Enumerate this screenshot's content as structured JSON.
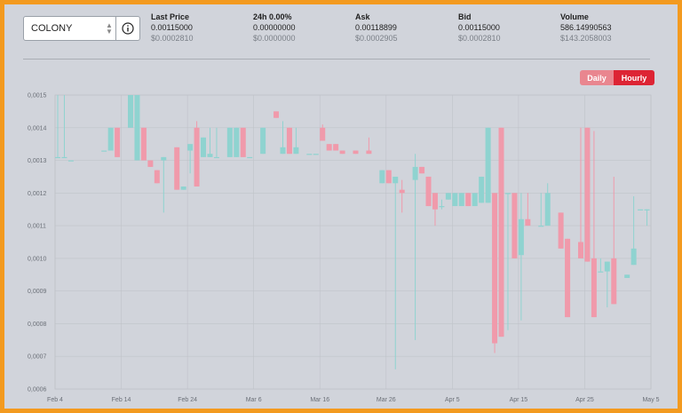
{
  "market": {
    "selected_coin": "COLONY"
  },
  "stats": [
    {
      "label": "Last Price",
      "value": "0.00115000",
      "usd": "$0.0002810"
    },
    {
      "label": "24h 0.00%",
      "value": "0.00000000",
      "usd": "$0.0000000"
    },
    {
      "label": "Ask",
      "value": "0.00118899",
      "usd": "$0.0002905"
    },
    {
      "label": "Bid",
      "value": "0.00115000",
      "usd": "$0.0002810"
    },
    {
      "label": "Volume",
      "value": "586.14990563",
      "usd": "$143.2058003"
    }
  ],
  "interval": {
    "daily_label": "Daily",
    "hourly_label": "Hourly",
    "active": "Hourly"
  },
  "colors": {
    "up": "#8fd3d0",
    "down": "#f09aab",
    "active_toggle": "#dd2434",
    "inactive_toggle": "#e9868f",
    "frame": "#f39a1f"
  },
  "chart_data": {
    "type": "candlestick",
    "ylim": [
      0.0006,
      0.0015
    ],
    "yticks": [
      "0,0015",
      "0,0014",
      "0,0013",
      "0,0012",
      "0,0011",
      "0,0010",
      "0,0009",
      "0,0008",
      "0,0007",
      "0,0006"
    ],
    "xticks": [
      "Feb 4",
      "Feb 14",
      "Feb 24",
      "Mar 6",
      "Mar 16",
      "Mar 26",
      "Apr 5",
      "Apr 15",
      "Apr 25",
      "May 5"
    ],
    "grid": true,
    "candles": [
      {
        "day": 0,
        "o": 0.00131,
        "h": 0.0015,
        "l": 0.00131,
        "c": 0.00131
      },
      {
        "day": 1,
        "o": 0.00131,
        "h": 0.0015,
        "l": 0.00131,
        "c": 0.00131
      },
      {
        "day": 2,
        "o": 0.0013,
        "h": 0.0013,
        "l": 0.0013,
        "c": 0.0013
      },
      {
        "day": 7,
        "o": 0.00133,
        "h": 0.00133,
        "l": 0.00133,
        "c": 0.00133
      },
      {
        "day": 8,
        "o": 0.00133,
        "h": 0.0014,
        "l": 0.00133,
        "c": 0.0014
      },
      {
        "day": 9,
        "o": 0.0014,
        "h": 0.0014,
        "l": 0.00131,
        "c": 0.00131
      },
      {
        "day": 11,
        "o": 0.0014,
        "h": 0.0015,
        "l": 0.0014,
        "c": 0.0015
      },
      {
        "day": 12,
        "o": 0.0013,
        "h": 0.0015,
        "l": 0.0013,
        "c": 0.0015
      },
      {
        "day": 13,
        "o": 0.0014,
        "h": 0.0014,
        "l": 0.0013,
        "c": 0.0013
      },
      {
        "day": 14,
        "o": 0.0013,
        "h": 0.0013,
        "l": 0.00128,
        "c": 0.00128
      },
      {
        "day": 15,
        "o": 0.00127,
        "h": 0.00127,
        "l": 0.00123,
        "c": 0.00123
      },
      {
        "day": 16,
        "o": 0.0013,
        "h": 0.00131,
        "l": 0.00114,
        "c": 0.00131
      },
      {
        "day": 18,
        "o": 0.00134,
        "h": 0.00134,
        "l": 0.00121,
        "c": 0.00121
      },
      {
        "day": 19,
        "o": 0.00121,
        "h": 0.00122,
        "l": 0.00121,
        "c": 0.00122
      },
      {
        "day": 20,
        "o": 0.00133,
        "h": 0.00135,
        "l": 0.00126,
        "c": 0.00135
      },
      {
        "day": 21,
        "o": 0.0014,
        "h": 0.00142,
        "l": 0.00122,
        "c": 0.00122
      },
      {
        "day": 22,
        "o": 0.00131,
        "h": 0.00137,
        "l": 0.00131,
        "c": 0.00137
      },
      {
        "day": 23,
        "o": 0.00131,
        "h": 0.0014,
        "l": 0.00131,
        "c": 0.00132
      },
      {
        "day": 24,
        "o": 0.00131,
        "h": 0.0014,
        "l": 0.00131,
        "c": 0.00131
      },
      {
        "day": 26,
        "o": 0.00131,
        "h": 0.0014,
        "l": 0.00131,
        "c": 0.0014
      },
      {
        "day": 27,
        "o": 0.00131,
        "h": 0.0014,
        "l": 0.00131,
        "c": 0.0014
      },
      {
        "day": 28,
        "o": 0.0014,
        "h": 0.0014,
        "l": 0.00131,
        "c": 0.00131
      },
      {
        "day": 29,
        "o": 0.00131,
        "h": 0.00131,
        "l": 0.00131,
        "c": 0.00131
      },
      {
        "day": 31,
        "o": 0.00132,
        "h": 0.0014,
        "l": 0.00132,
        "c": 0.0014
      },
      {
        "day": 33,
        "o": 0.00145,
        "h": 0.00145,
        "l": 0.00143,
        "c": 0.00143
      },
      {
        "day": 34,
        "o": 0.00132,
        "h": 0.00142,
        "l": 0.00132,
        "c": 0.00134
      },
      {
        "day": 35,
        "o": 0.0014,
        "h": 0.0014,
        "l": 0.00132,
        "c": 0.00132
      },
      {
        "day": 36,
        "o": 0.00132,
        "h": 0.0014,
        "l": 0.00132,
        "c": 0.00134
      },
      {
        "day": 38,
        "o": 0.00132,
        "h": 0.00132,
        "l": 0.00132,
        "c": 0.00132
      },
      {
        "day": 39,
        "o": 0.00132,
        "h": 0.00132,
        "l": 0.00132,
        "c": 0.00132
      },
      {
        "day": 40,
        "o": 0.0014,
        "h": 0.00141,
        "l": 0.00136,
        "c": 0.00136
      },
      {
        "day": 41,
        "o": 0.00135,
        "h": 0.00135,
        "l": 0.00133,
        "c": 0.00133
      },
      {
        "day": 42,
        "o": 0.00135,
        "h": 0.00135,
        "l": 0.00133,
        "c": 0.00133
      },
      {
        "day": 43,
        "o": 0.00133,
        "h": 0.00133,
        "l": 0.00132,
        "c": 0.00132
      },
      {
        "day": 45,
        "o": 0.00133,
        "h": 0.00133,
        "l": 0.00132,
        "c": 0.00132
      },
      {
        "day": 47,
        "o": 0.00133,
        "h": 0.00137,
        "l": 0.00132,
        "c": 0.00132
      },
      {
        "day": 49,
        "o": 0.00123,
        "h": 0.00127,
        "l": 0.00123,
        "c": 0.00127
      },
      {
        "day": 50,
        "o": 0.00127,
        "h": 0.00127,
        "l": 0.00123,
        "c": 0.00123
      },
      {
        "day": 51,
        "o": 0.00123,
        "h": 0.00125,
        "l": 0.00066,
        "c": 0.00125
      },
      {
        "day": 52,
        "o": 0.00121,
        "h": 0.00124,
        "l": 0.00114,
        "c": 0.0012
      },
      {
        "day": 54,
        "o": 0.00124,
        "h": 0.00132,
        "l": 0.00075,
        "c": 0.00128
      },
      {
        "day": 55,
        "o": 0.00128,
        "h": 0.00128,
        "l": 0.00126,
        "c": 0.00126
      },
      {
        "day": 56,
        "o": 0.00125,
        "h": 0.00125,
        "l": 0.00116,
        "c": 0.00116
      },
      {
        "day": 57,
        "o": 0.0012,
        "h": 0.0012,
        "l": 0.0011,
        "c": 0.00115
      },
      {
        "day": 58,
        "o": 0.00116,
        "h": 0.00118,
        "l": 0.00115,
        "c": 0.00116
      },
      {
        "day": 59,
        "o": 0.00118,
        "h": 0.0012,
        "l": 0.00118,
        "c": 0.0012
      },
      {
        "day": 60,
        "o": 0.00116,
        "h": 0.0012,
        "l": 0.00116,
        "c": 0.0012
      },
      {
        "day": 61,
        "o": 0.00116,
        "h": 0.0012,
        "l": 0.00116,
        "c": 0.0012
      },
      {
        "day": 62,
        "o": 0.0012,
        "h": 0.0012,
        "l": 0.00116,
        "c": 0.00116
      },
      {
        "day": 63,
        "o": 0.00116,
        "h": 0.0012,
        "l": 0.00116,
        "c": 0.0012
      },
      {
        "day": 64,
        "o": 0.00117,
        "h": 0.00125,
        "l": 0.00117,
        "c": 0.00125
      },
      {
        "day": 65,
        "o": 0.00117,
        "h": 0.0014,
        "l": 0.00117,
        "c": 0.0014
      },
      {
        "day": 66,
        "o": 0.0012,
        "h": 0.0012,
        "l": 0.00071,
        "c": 0.00074
      },
      {
        "day": 67,
        "o": 0.0014,
        "h": 0.0014,
        "l": 0.00076,
        "c": 0.00076
      },
      {
        "day": 68,
        "o": 0.0012,
        "h": 0.0012,
        "l": 0.00078,
        "c": 0.0012
      },
      {
        "day": 69,
        "o": 0.0012,
        "h": 0.0012,
        "l": 0.001,
        "c": 0.001
      },
      {
        "day": 70,
        "o": 0.00101,
        "h": 0.0012,
        "l": 0.00081,
        "c": 0.00112
      },
      {
        "day": 71,
        "o": 0.00112,
        "h": 0.0012,
        "l": 0.0011,
        "c": 0.0011
      },
      {
        "day": 73,
        "o": 0.0011,
        "h": 0.0012,
        "l": 0.0011,
        "c": 0.0011
      },
      {
        "day": 74,
        "o": 0.0011,
        "h": 0.00123,
        "l": 0.0011,
        "c": 0.0012
      },
      {
        "day": 76,
        "o": 0.00114,
        "h": 0.00114,
        "l": 0.00103,
        "c": 0.00103
      },
      {
        "day": 77,
        "o": 0.00106,
        "h": 0.00106,
        "l": 0.00082,
        "c": 0.00082
      },
      {
        "day": 79,
        "o": 0.00105,
        "h": 0.0014,
        "l": 0.001,
        "c": 0.001
      },
      {
        "day": 80,
        "o": 0.0014,
        "h": 0.0014,
        "l": 0.00099,
        "c": 0.00099
      },
      {
        "day": 81,
        "o": 0.001,
        "h": 0.00139,
        "l": 0.00082,
        "c": 0.00082
      },
      {
        "day": 82,
        "o": 0.00096,
        "h": 0.001,
        "l": 0.00096,
        "c": 0.00096
      },
      {
        "day": 83,
        "o": 0.00096,
        "h": 0.00099,
        "l": 0.00085,
        "c": 0.00099
      },
      {
        "day": 84,
        "o": 0.001,
        "h": 0.00125,
        "l": 0.00086,
        "c": 0.00086
      },
      {
        "day": 86,
        "o": 0.00094,
        "h": 0.00095,
        "l": 0.00094,
        "c": 0.00095
      },
      {
        "day": 87,
        "o": 0.00098,
        "h": 0.00119,
        "l": 0.00098,
        "c": 0.00103
      },
      {
        "day": 88,
        "o": 0.00115,
        "h": 0.00115,
        "l": 0.00115,
        "c": 0.00115
      },
      {
        "day": 89,
        "o": 0.00115,
        "h": 0.00115,
        "l": 0.0011,
        "c": 0.00115
      }
    ]
  }
}
